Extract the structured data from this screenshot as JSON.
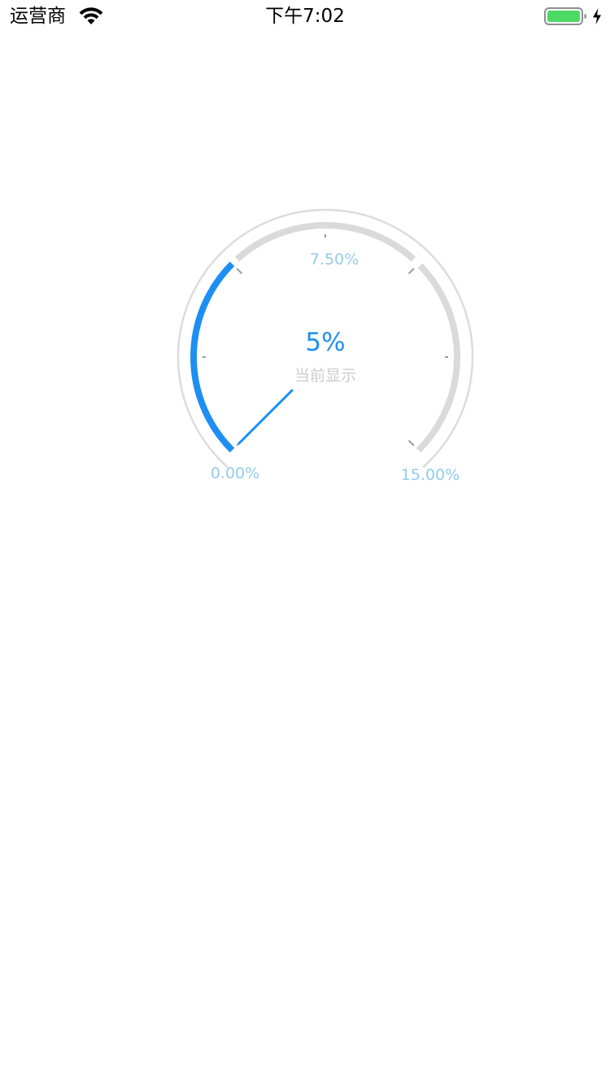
{
  "status_bar": {
    "carrier": "运营商",
    "time": "下午7:02",
    "battery_color": "#4cd964"
  },
  "gauge": {
    "min_label": "0.00%",
    "mid_label": "7.50%",
    "max_label": "15.00%",
    "min": 0,
    "max": 15,
    "current": 5,
    "value_text": "5%",
    "caption": "当前显示",
    "colors": {
      "progress": "#1e8ff2",
      "track": "#dadada",
      "outer_ring": "#dcdcdc",
      "scale_label": "#92cdea",
      "caption": "#cccccc",
      "value": "#1e8ff2"
    }
  }
}
